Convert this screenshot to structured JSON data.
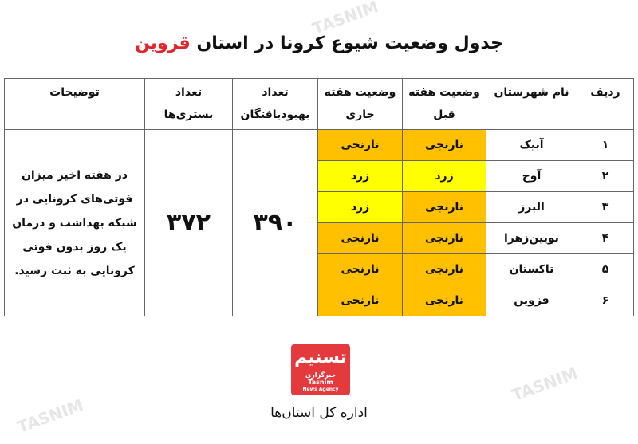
{
  "title": {
    "prefix": "جدول وضعیت شیوع کرونا در استان",
    "province": "قزوین"
  },
  "colors": {
    "orange": "#ffc000",
    "yellow": "#ffff00",
    "brand_red": "#e53a3d"
  },
  "headers": {
    "index": "ردیف",
    "name": "نام شهرستان",
    "prev_line1": "وضعیت هفته",
    "prev_line2": "قبل",
    "cur_line1": "وضعیت هفته",
    "cur_line2": "جاری",
    "rec_line1": "تعداد",
    "rec_line2": "بهبودیافتگان",
    "bed_line1": "تعداد",
    "bed_line2": "بستری‌ها",
    "desc": "توضیحات"
  },
  "rows": [
    {
      "index": "۱",
      "name": "آبیک",
      "prev": "نارنجی",
      "cur": "نارنجی"
    },
    {
      "index": "۲",
      "name": "آوج",
      "prev": "زرد",
      "cur": "زرد"
    },
    {
      "index": "۳",
      "name": "البرز",
      "prev": "نارنجی",
      "cur": "زرد"
    },
    {
      "index": "۴",
      "name": "بویین‌زهرا",
      "prev": "نارنجی",
      "cur": "نارنجی"
    },
    {
      "index": "۵",
      "name": "تاکستان",
      "prev": "نارنجی",
      "cur": "نارنجی"
    },
    {
      "index": "۶",
      "name": "قزوین",
      "prev": "نارنجی",
      "cur": "نارنجی"
    }
  ],
  "recovered": "۳۹۰",
  "hospitalized": "۳۷۲",
  "description": "در هفته اخیر میزان فوتی‌های کرونایی در شبکه بهداشت و درمان یک روز بدون فوتی کرونایی به ثبت رسید.",
  "logo": {
    "mark": "تسنیم",
    "fa": "خبرگزاری",
    "en": "Tasnim",
    "sub": "News Agency"
  },
  "department": "اداره کل استان‌ها",
  "watermark": "TASNIM"
}
